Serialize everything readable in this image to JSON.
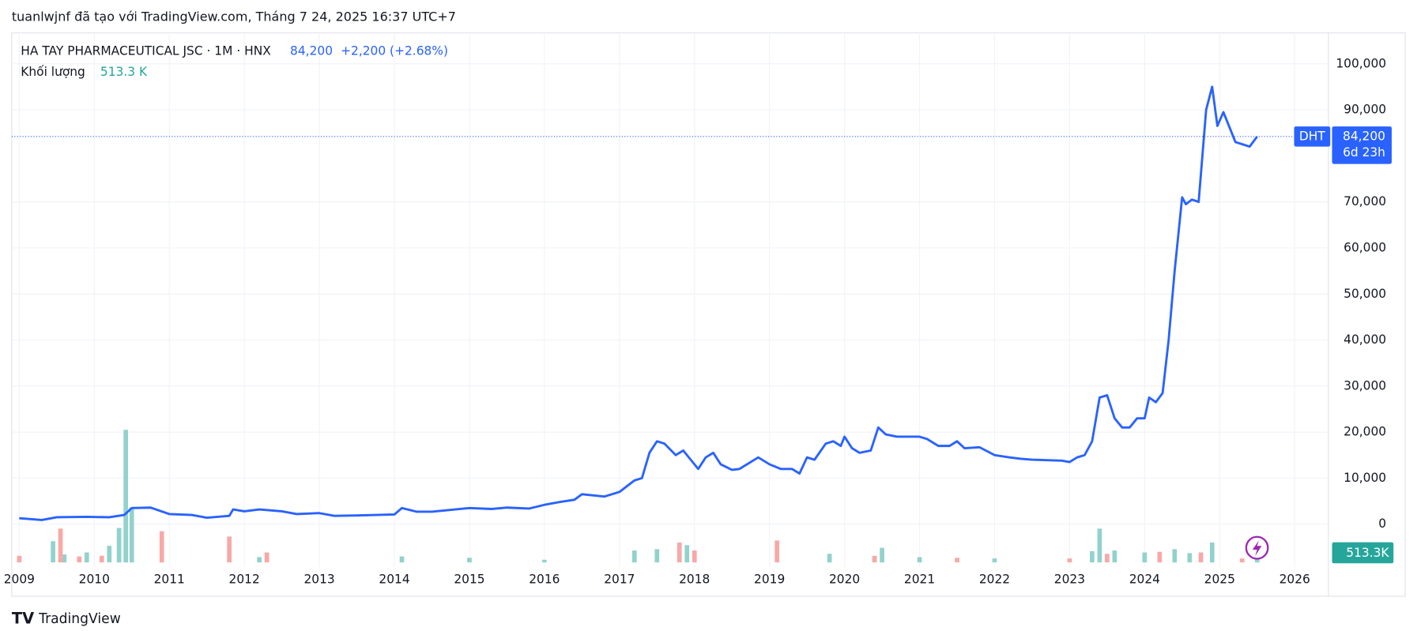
{
  "header": "tuanlwjnf đã tạo với TradingView.com, Tháng 7 24, 2025 16:37 UTC+7",
  "footer": "TradingView",
  "chart_data": {
    "type": "line",
    "symbol": "HA TAY PHARMACEUTICAL JSC · 1M · HNX",
    "change": "+2,200 (+2.68%)",
    "last_price": {
      "value": 84200,
      "label": "84,200"
    },
    "countdown": "6d 23h",
    "series": [
      {
        "name": "DHT",
        "color": "#2962ff",
        "x": [
          2009.0,
          2009.3,
          2009.5,
          2009.9,
          2010.2,
          2010.4,
          2010.5,
          2010.75,
          2011.0,
          2011.3,
          2011.5,
          2011.8,
          2011.85,
          2012.0,
          2012.2,
          2012.5,
          2012.7,
          2013.0,
          2013.2,
          2013.5,
          2014.0,
          2014.1,
          2014.3,
          2014.5,
          2015.0,
          2015.3,
          2015.5,
          2015.8,
          2016.0,
          2016.2,
          2016.4,
          2016.5,
          2016.8,
          2017.0,
          2017.2,
          2017.3,
          2017.4,
          2017.5,
          2017.6,
          2017.75,
          2017.85,
          2017.95,
          2018.05,
          2018.15,
          2018.25,
          2018.35,
          2018.5,
          2018.6,
          2018.75,
          2018.85,
          2019.0,
          2019.15,
          2019.3,
          2019.4,
          2019.5,
          2019.6,
          2019.75,
          2019.85,
          2019.95,
          2020.0,
          2020.1,
          2020.2,
          2020.35,
          2020.45,
          2020.55,
          2020.7,
          2021.0,
          2021.1,
          2021.25,
          2021.4,
          2021.5,
          2021.6,
          2021.8,
          2022.0,
          2022.2,
          2022.35,
          2022.5,
          2022.9,
          2023.0,
          2023.1,
          2023.2,
          2023.3,
          2023.4,
          2023.5,
          2023.6,
          2023.7,
          2023.8,
          2023.9,
          2024.0,
          2024.06,
          2024.15,
          2024.24,
          2024.32,
          2024.4,
          2024.5,
          2024.55,
          2024.63,
          2024.72,
          2024.82,
          2024.9,
          2024.97,
          2025.05,
          2025.21,
          2025.4,
          2025.5
        ],
        "values": [
          1300,
          900,
          1500,
          1600,
          1500,
          2000,
          3500,
          3600,
          2200,
          2000,
          1400,
          1800,
          3200,
          2800,
          3200,
          2800,
          2200,
          2400,
          1800,
          1900,
          2100,
          3500,
          2700,
          2700,
          3500,
          3300,
          3600,
          3400,
          4200,
          4800,
          5300,
          6500,
          6000,
          7000,
          9500,
          10000,
          15500,
          18000,
          17500,
          15000,
          16000,
          14000,
          12000,
          14500,
          15500,
          13000,
          11800,
          12000,
          13500,
          14500,
          13000,
          12000,
          12000,
          11000,
          14500,
          14000,
          17500,
          18000,
          17000,
          19000,
          16500,
          15500,
          16000,
          21000,
          19500,
          19000,
          19000,
          18500,
          17000,
          17000,
          18000,
          16500,
          16700,
          15000,
          14500,
          14200,
          14000,
          13800,
          13500,
          14500,
          15000,
          18000,
          27500,
          28000,
          23000,
          21000,
          21000,
          23000,
          23000,
          27500,
          26500,
          28500,
          40000,
          55000,
          71000,
          69500,
          70500,
          70000,
          90000,
          95000,
          86500,
          89500,
          83000,
          82000,
          84200
        ]
      }
    ],
    "volume": {
      "name": "Khối lượng",
      "legend_value": "513.3 K",
      "tag": "513.3K",
      "up": {
        "color": "#92d2cc",
        "x": [
          2009.45,
          2009.6,
          2009.9,
          2010.2,
          2010.33,
          2010.42,
          2010.5,
          2012.2,
          2014.1,
          2015.0,
          2016.0,
          2017.2,
          2017.5,
          2017.9,
          2019.8,
          2020.5,
          2021.0,
          2022.0,
          2023.3,
          2023.4,
          2023.6,
          2024.0,
          2024.4,
          2024.6,
          2024.9,
          2025.5
        ],
        "values": [
          3200,
          1200,
          1500,
          2500,
          5200,
          20000,
          8300,
          800,
          900,
          700,
          400,
          1800,
          2000,
          2600,
          1300,
          2200,
          800,
          600,
          1700,
          5100,
          1800,
          1500,
          2000,
          1400,
          3000,
          513.3
        ]
      },
      "down": {
        "color": "#f7a9a7",
        "x": [
          2009.0,
          2009.55,
          2009.8,
          2010.1,
          2010.9,
          2011.8,
          2012.3,
          2017.8,
          2018.0,
          2019.1,
          2020.4,
          2021.5,
          2023.0,
          2023.5,
          2024.2,
          2024.75,
          2025.3
        ],
        "values": [
          1000,
          5100,
          900,
          1000,
          4700,
          3900,
          1500,
          3000,
          1800,
          3300,
          1000,
          700,
          600,
          1300,
          1600,
          1500,
          600
        ]
      }
    },
    "xlim": [
      2008.9,
      2026.45
    ],
    "xticks": [
      2009,
      2010,
      2011,
      2012,
      2013,
      2014,
      2015,
      2016,
      2017,
      2018,
      2019,
      2020,
      2021,
      2022,
      2023,
      2024,
      2025,
      2026
    ],
    "ylim": [
      -9300,
      106700
    ],
    "yticks": [
      0,
      {
        "value": 10000,
        "label": "10,000"
      },
      {
        "value": 20000,
        "label": "20,000"
      },
      {
        "value": 30000,
        "label": "30,000"
      },
      {
        "value": 40000,
        "label": "40,000"
      },
      {
        "value": 50000,
        "label": "50,000"
      },
      {
        "value": 60000,
        "label": "60,000"
      },
      {
        "value": 70000,
        "label": "70,000"
      },
      {
        "value": 90000,
        "label": "90,000"
      },
      {
        "value": 100000,
        "label": "100,000"
      }
    ],
    "grid": true
  }
}
